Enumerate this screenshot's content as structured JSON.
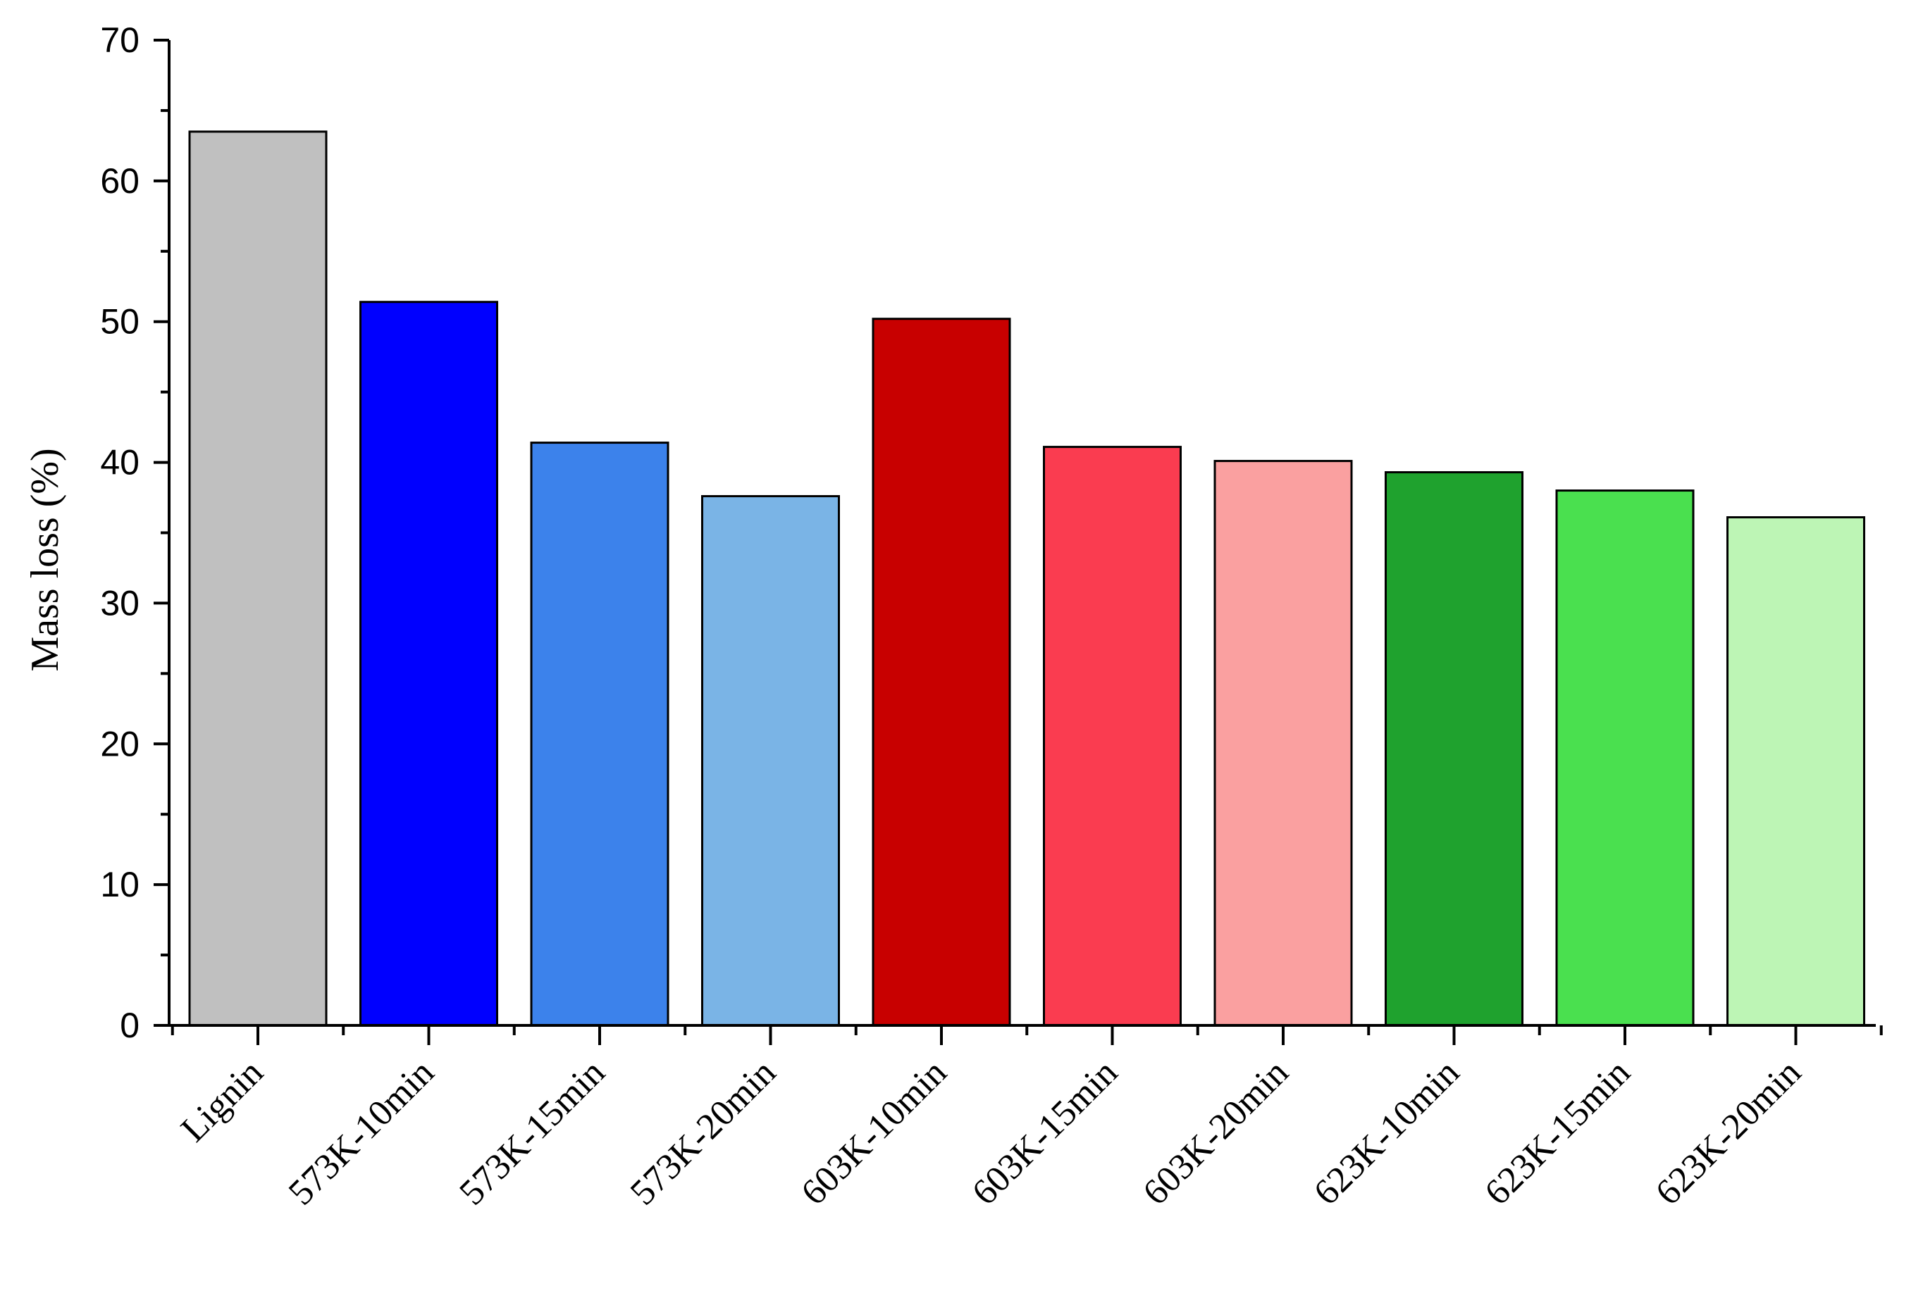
{
  "chart_data": {
    "type": "bar",
    "title": "",
    "xlabel": "",
    "ylabel": "Mass loss (%)",
    "ylim": [
      0,
      70
    ],
    "yticks": [
      0,
      10,
      20,
      30,
      40,
      50,
      60,
      70
    ],
    "grid": false,
    "legend": "none",
    "categories": [
      "Lignin",
      "573K-10min",
      "573K-15min",
      "573K-20min",
      "603K-10min",
      "603K-15min",
      "603K-20min",
      "623K-10min",
      "623K-15min",
      "623K-20min"
    ],
    "values": [
      63.5,
      51.4,
      41.4,
      37.6,
      50.2,
      41.1,
      40.1,
      39.3,
      38.0,
      36.1
    ],
    "colors": [
      "#c0c0c0",
      "#0000ff",
      "#3c82eb",
      "#7ab4e6",
      "#c80000",
      "#fa3c50",
      "#faa0a0",
      "#1fa22e",
      "#4ae04f",
      "#bdf5b5"
    ]
  }
}
